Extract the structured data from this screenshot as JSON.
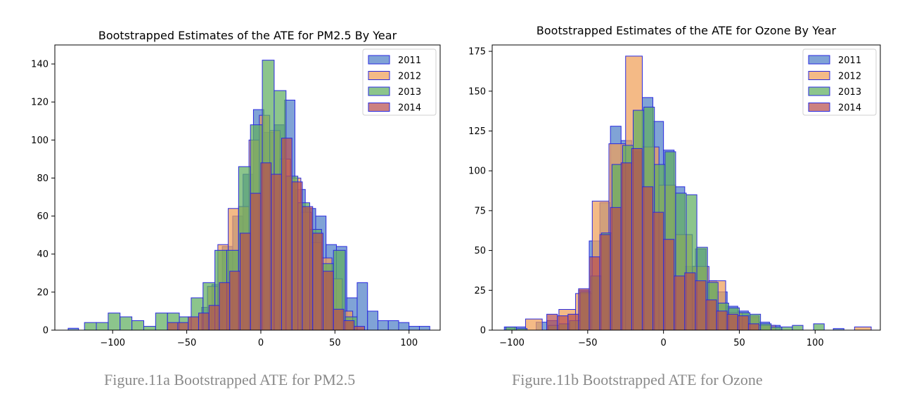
{
  "captions": [
    "Figure.11a Bootstrapped ATE for PM2.5",
    "Figure.11b Bootstrapped ATE for Ozone"
  ],
  "colors": {
    "2011": "#4f7fc6",
    "2012": "#f0a058",
    "2013": "#5fae5f",
    "2014": "#b85050",
    "edge": "#2a2ae0"
  },
  "chart_data": [
    {
      "type": "bar",
      "title": "Bootstrapped Estimates of the ATE for PM2.5 By Year",
      "xlabel": "",
      "ylabel": "",
      "xlim": [
        -139,
        121
      ],
      "ylim": [
        0,
        150
      ],
      "xticks": [
        -100,
        -50,
        0,
        50,
        100
      ],
      "xtick_labels": [
        "−100",
        "−50",
        "0",
        "50",
        "100"
      ],
      "yticks": [
        0,
        20,
        40,
        60,
        80,
        100,
        120,
        140
      ],
      "legend_position": "top-right",
      "series": [
        {
          "name": "2011",
          "bins": [
            {
              "x0": -40,
              "x1": -33,
              "y": 12
            },
            {
              "x0": -33,
              "x1": -26,
              "y": 24
            },
            {
              "x0": -26,
              "x1": -19,
              "y": 44
            },
            {
              "x0": -19,
              "x1": -12,
              "y": 60
            },
            {
              "x0": -12,
              "x1": -5,
              "y": 82
            },
            {
              "x0": -5,
              "x1": 2,
              "y": 116
            },
            {
              "x0": 2,
              "x1": 9,
              "y": 104
            },
            {
              "x0": 9,
              "x1": 16,
              "y": 108
            },
            {
              "x0": 16,
              "x1": 23,
              "y": 121
            },
            {
              "x0": 23,
              "x1": 30,
              "y": 74
            },
            {
              "x0": 30,
              "x1": 37,
              "y": 64
            },
            {
              "x0": 37,
              "x1": 44,
              "y": 60
            },
            {
              "x0": 44,
              "x1": 51,
              "y": 45
            },
            {
              "x0": 51,
              "x1": 58,
              "y": 44
            },
            {
              "x0": 58,
              "x1": 65,
              "y": 17
            },
            {
              "x0": 65,
              "x1": 72,
              "y": 25
            },
            {
              "x0": 72,
              "x1": 79,
              "y": 10
            },
            {
              "x0": 79,
              "x1": 86,
              "y": 5
            },
            {
              "x0": 86,
              "x1": 93,
              "y": 5
            },
            {
              "x0": 93,
              "x1": 100,
              "y": 4
            },
            {
              "x0": 100,
              "x1": 107,
              "y": 2
            },
            {
              "x0": 107,
              "x1": 114,
              "y": 2
            },
            {
              "x0": -130,
              "x1": -123,
              "y": 1
            }
          ]
        },
        {
          "name": "2012",
          "bins": [
            {
              "x0": -36,
              "x1": -29,
              "y": 23
            },
            {
              "x0": -29,
              "x1": -22,
              "y": 45
            },
            {
              "x0": -22,
              "x1": -15,
              "y": 64
            },
            {
              "x0": -15,
              "x1": -8,
              "y": 65
            },
            {
              "x0": -8,
              "x1": -1,
              "y": 100
            },
            {
              "x0": -1,
              "x1": 6,
              "y": 113
            },
            {
              "x0": 6,
              "x1": 13,
              "y": 105
            },
            {
              "x0": 13,
              "x1": 20,
              "y": 90
            },
            {
              "x0": 20,
              "x1": 27,
              "y": 80
            },
            {
              "x0": 27,
              "x1": 34,
              "y": 62
            },
            {
              "x0": 34,
              "x1": 41,
              "y": 46
            },
            {
              "x0": 41,
              "x1": 48,
              "y": 38
            },
            {
              "x0": 48,
              "x1": 55,
              "y": 27
            },
            {
              "x0": 55,
              "x1": 62,
              "y": 10
            }
          ]
        },
        {
          "name": "2013",
          "bins": [
            {
              "x0": -119,
              "x1": -111,
              "y": 4
            },
            {
              "x0": -111,
              "x1": -103,
              "y": 4
            },
            {
              "x0": -103,
              "x1": -95,
              "y": 9
            },
            {
              "x0": -95,
              "x1": -87,
              "y": 7
            },
            {
              "x0": -87,
              "x1": -79,
              "y": 5
            },
            {
              "x0": -79,
              "x1": -71,
              "y": 2
            },
            {
              "x0": -71,
              "x1": -63,
              "y": 9
            },
            {
              "x0": -63,
              "x1": -55,
              "y": 9
            },
            {
              "x0": -55,
              "x1": -47,
              "y": 7
            },
            {
              "x0": -47,
              "x1": -39,
              "y": 17
            },
            {
              "x0": -39,
              "x1": -31,
              "y": 25
            },
            {
              "x0": -31,
              "x1": -23,
              "y": 42
            },
            {
              "x0": -23,
              "x1": -15,
              "y": 42
            },
            {
              "x0": -15,
              "x1": -7,
              "y": 86
            },
            {
              "x0": -7,
              "x1": 1,
              "y": 108
            },
            {
              "x0": 1,
              "x1": 9,
              "y": 142
            },
            {
              "x0": 9,
              "x1": 17,
              "y": 126
            },
            {
              "x0": 17,
              "x1": 25,
              "y": 81
            },
            {
              "x0": 25,
              "x1": 33,
              "y": 67
            },
            {
              "x0": 33,
              "x1": 41,
              "y": 53
            },
            {
              "x0": 41,
              "x1": 49,
              "y": 35
            },
            {
              "x0": 49,
              "x1": 57,
              "y": 42
            },
            {
              "x0": 57,
              "x1": 65,
              "y": 7
            }
          ]
        },
        {
          "name": "2014",
          "bins": [
            {
              "x0": -63,
              "x1": -56,
              "y": 4
            },
            {
              "x0": -56,
              "x1": -49,
              "y": 4
            },
            {
              "x0": -49,
              "x1": -42,
              "y": 7
            },
            {
              "x0": -42,
              "x1": -35,
              "y": 9
            },
            {
              "x0": -35,
              "x1": -28,
              "y": 13
            },
            {
              "x0": -28,
              "x1": -21,
              "y": 25
            },
            {
              "x0": -21,
              "x1": -14,
              "y": 31
            },
            {
              "x0": -14,
              "x1": -7,
              "y": 51
            },
            {
              "x0": -7,
              "x1": 0,
              "y": 72
            },
            {
              "x0": 0,
              "x1": 7,
              "y": 88
            },
            {
              "x0": 7,
              "x1": 14,
              "y": 82
            },
            {
              "x0": 14,
              "x1": 21,
              "y": 101
            },
            {
              "x0": 21,
              "x1": 28,
              "y": 78
            },
            {
              "x0": 28,
              "x1": 35,
              "y": 65
            },
            {
              "x0": 35,
              "x1": 42,
              "y": 51
            },
            {
              "x0": 42,
              "x1": 49,
              "y": 31
            },
            {
              "x0": 49,
              "x1": 56,
              "y": 11
            },
            {
              "x0": 56,
              "x1": 63,
              "y": 5
            },
            {
              "x0": 63,
              "x1": 70,
              "y": 2
            }
          ]
        }
      ]
    },
    {
      "type": "bar",
      "title": "Bootstrapped Estimates of the ATE for Ozone By Year",
      "xlabel": "",
      "ylabel": "",
      "xlim": [
        -113,
        143
      ],
      "ylim": [
        0,
        179
      ],
      "xticks": [
        -100,
        -50,
        0,
        50,
        100
      ],
      "xtick_labels": [
        "−100",
        "−50",
        "0",
        "50",
        "100"
      ],
      "yticks": [
        0,
        25,
        50,
        75,
        100,
        125,
        150,
        175
      ],
      "legend_position": "top-right",
      "series": [
        {
          "name": "2011",
          "bins": [
            {
              "x0": -105,
              "x1": -98,
              "y": 2
            },
            {
              "x0": -98,
              "x1": -91,
              "y": 2
            },
            {
              "x0": -84,
              "x1": -77,
              "y": 5
            },
            {
              "x0": -77,
              "x1": -70,
              "y": 6
            },
            {
              "x0": -56,
              "x1": -49,
              "y": 25
            },
            {
              "x0": -49,
              "x1": -42,
              "y": 56
            },
            {
              "x0": -42,
              "x1": -35,
              "y": 80
            },
            {
              "x0": -35,
              "x1": -28,
              "y": 128
            },
            {
              "x0": -28,
              "x1": -21,
              "y": 119
            },
            {
              "x0": -21,
              "x1": -14,
              "y": 112
            },
            {
              "x0": -14,
              "x1": -7,
              "y": 146
            },
            {
              "x0": -7,
              "x1": 0,
              "y": 131
            },
            {
              "x0": 0,
              "x1": 7,
              "y": 113
            },
            {
              "x0": 7,
              "x1": 14,
              "y": 90
            },
            {
              "x0": 14,
              "x1": 21,
              "y": 40
            },
            {
              "x0": 21,
              "x1": 28,
              "y": 51
            },
            {
              "x0": 28,
              "x1": 35,
              "y": 31
            },
            {
              "x0": 35,
              "x1": 42,
              "y": 24
            },
            {
              "x0": 42,
              "x1": 49,
              "y": 15
            },
            {
              "x0": 49,
              "x1": 56,
              "y": 12
            },
            {
              "x0": 56,
              "x1": 63,
              "y": 8
            },
            {
              "x0": 63,
              "x1": 70,
              "y": 5
            },
            {
              "x0": 70,
              "x1": 77,
              "y": 3
            },
            {
              "x0": 112,
              "x1": 119,
              "y": 1
            }
          ]
        },
        {
          "name": "2012",
          "bins": [
            {
              "x0": -91,
              "x1": -80,
              "y": 7
            },
            {
              "x0": -69,
              "x1": -58,
              "y": 13
            },
            {
              "x0": -58,
              "x1": -47,
              "y": 23
            },
            {
              "x0": -47,
              "x1": -36,
              "y": 81
            },
            {
              "x0": -36,
              "x1": -25,
              "y": 117
            },
            {
              "x0": -25,
              "x1": -14,
              "y": 172
            },
            {
              "x0": -14,
              "x1": -3,
              "y": 115
            },
            {
              "x0": -3,
              "x1": 8,
              "y": 91
            },
            {
              "x0": 8,
              "x1": 19,
              "y": 60
            },
            {
              "x0": 19,
              "x1": 30,
              "y": 40
            },
            {
              "x0": 30,
              "x1": 41,
              "y": 31
            },
            {
              "x0": 41,
              "x1": 52,
              "y": 11
            },
            {
              "x0": 52,
              "x1": 63,
              "y": 9
            },
            {
              "x0": 63,
              "x1": 74,
              "y": 3
            },
            {
              "x0": 126,
              "x1": 137,
              "y": 2
            }
          ]
        },
        {
          "name": "2013",
          "bins": [
            {
              "x0": -104,
              "x1": -97,
              "y": 2
            },
            {
              "x0": -97,
              "x1": -90,
              "y": 1
            },
            {
              "x0": -76,
              "x1": -69,
              "y": 3
            },
            {
              "x0": -69,
              "x1": -62,
              "y": 4
            },
            {
              "x0": -62,
              "x1": -55,
              "y": 6
            },
            {
              "x0": -55,
              "x1": -48,
              "y": 24
            },
            {
              "x0": -48,
              "x1": -41,
              "y": 34
            },
            {
              "x0": -41,
              "x1": -34,
              "y": 61
            },
            {
              "x0": -34,
              "x1": -27,
              "y": 104
            },
            {
              "x0": -27,
              "x1": -20,
              "y": 116
            },
            {
              "x0": -20,
              "x1": -13,
              "y": 138
            },
            {
              "x0": -13,
              "x1": -6,
              "y": 140
            },
            {
              "x0": -6,
              "x1": 1,
              "y": 104
            },
            {
              "x0": 1,
              "x1": 8,
              "y": 112
            },
            {
              "x0": 8,
              "x1": 15,
              "y": 86
            },
            {
              "x0": 15,
              "x1": 22,
              "y": 85
            },
            {
              "x0": 22,
              "x1": 29,
              "y": 52
            },
            {
              "x0": 29,
              "x1": 36,
              "y": 30
            },
            {
              "x0": 36,
              "x1": 43,
              "y": 17
            },
            {
              "x0": 43,
              "x1": 50,
              "y": 14
            },
            {
              "x0": 50,
              "x1": 57,
              "y": 11
            },
            {
              "x0": 57,
              "x1": 64,
              "y": 10
            },
            {
              "x0": 64,
              "x1": 71,
              "y": 4
            },
            {
              "x0": 71,
              "x1": 78,
              "y": 2
            },
            {
              "x0": 78,
              "x1": 85,
              "y": 2
            },
            {
              "x0": 85,
              "x1": 92,
              "y": 3
            },
            {
              "x0": 99,
              "x1": 106,
              "y": 4
            }
          ]
        },
        {
          "name": "2014",
          "bins": [
            {
              "x0": -77,
              "x1": -70,
              "y": 10
            },
            {
              "x0": -70,
              "x1": -63,
              "y": 9
            },
            {
              "x0": -63,
              "x1": -56,
              "y": 10
            },
            {
              "x0": -56,
              "x1": -49,
              "y": 26
            },
            {
              "x0": -49,
              "x1": -42,
              "y": 46
            },
            {
              "x0": -42,
              "x1": -35,
              "y": 60
            },
            {
              "x0": -35,
              "x1": -28,
              "y": 77
            },
            {
              "x0": -28,
              "x1": -21,
              "y": 105
            },
            {
              "x0": -21,
              "x1": -14,
              "y": 114
            },
            {
              "x0": -14,
              "x1": -7,
              "y": 90
            },
            {
              "x0": -7,
              "x1": 0,
              "y": 74
            },
            {
              "x0": 0,
              "x1": 7,
              "y": 57
            },
            {
              "x0": 7,
              "x1": 14,
              "y": 34
            },
            {
              "x0": 14,
              "x1": 21,
              "y": 36
            },
            {
              "x0": 21,
              "x1": 28,
              "y": 31
            },
            {
              "x0": 28,
              "x1": 35,
              "y": 19
            },
            {
              "x0": 35,
              "x1": 42,
              "y": 12
            },
            {
              "x0": 42,
              "x1": 49,
              "y": 10
            },
            {
              "x0": 49,
              "x1": 56,
              "y": 9
            },
            {
              "x0": 56,
              "x1": 63,
              "y": 4
            }
          ]
        }
      ]
    }
  ]
}
